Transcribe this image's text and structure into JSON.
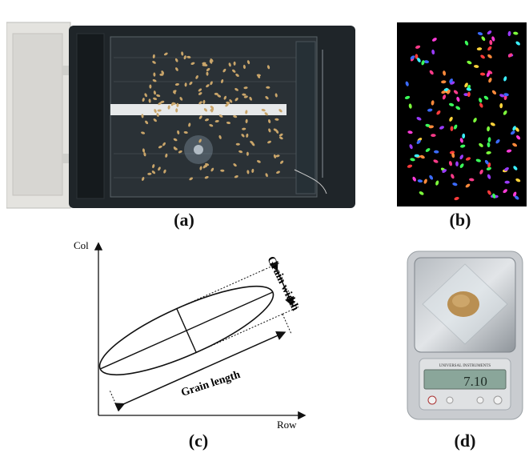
{
  "panels": {
    "a": {
      "caption": "(a)",
      "icon": "flatbed-scanner-with-rice-grains"
    },
    "b": {
      "caption": "(b)",
      "icon": "segmented-grains-color-image"
    },
    "c": {
      "caption": "(c)",
      "axis_y_label": "Col",
      "axis_x_label": "Row",
      "width_label": "Grain width",
      "length_label": "Grain length"
    },
    "d": {
      "caption": "(d)",
      "scale_brand": "UNIVERSAL INSTRUMENTS",
      "scale_reading": "7.10",
      "icon": "digital-balance-with-grain-pile"
    }
  },
  "colors": {
    "scanner_body": "#1f2529",
    "scanner_lid": "#e4e3df",
    "grain": "#c9a56a",
    "segment_bg": "#000000",
    "scale_body": "#c9ccd0",
    "scale_display": "#8aa69a"
  }
}
